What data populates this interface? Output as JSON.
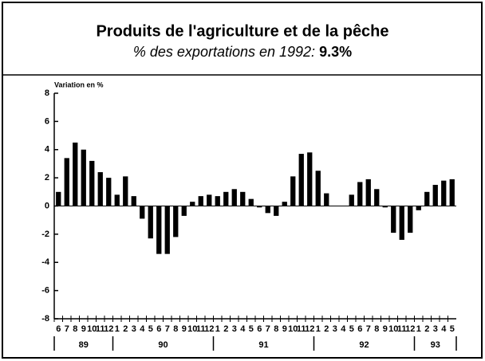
{
  "chart_data": {
    "type": "bar",
    "title": "Produits de l'agriculture et de la pêche",
    "subtitle": "% des exportations en 1992:",
    "subtitle_value": "9.3%",
    "y_label": "Variation en %",
    "categories": [
      "6",
      "7",
      "8",
      "9",
      "10",
      "11",
      "12",
      "1",
      "2",
      "3",
      "4",
      "5",
      "6",
      "7",
      "8",
      "9",
      "10",
      "11",
      "12",
      "1",
      "2",
      "3",
      "4",
      "5",
      "6",
      "7",
      "8",
      "9",
      "10",
      "11",
      "12",
      "1",
      "2",
      "3",
      "4",
      "5",
      "6",
      "7",
      "8",
      "9",
      "10",
      "11",
      "12",
      "1",
      "2",
      "3",
      "4",
      "5"
    ],
    "years": [
      "89",
      "90",
      "91",
      "92",
      "93"
    ],
    "values": [
      1.0,
      3.4,
      4.5,
      4.0,
      3.2,
      2.4,
      2.0,
      0.8,
      2.1,
      0.7,
      -0.9,
      -2.3,
      -3.4,
      -3.4,
      -2.2,
      -0.7,
      0.3,
      0.7,
      0.8,
      0.7,
      1.0,
      1.2,
      1.0,
      0.5,
      -0.1,
      -0.5,
      -0.7,
      0.3,
      2.1,
      3.7,
      3.8,
      2.5,
      0.9,
      0,
      0,
      0.8,
      1.7,
      1.9,
      1.2,
      -0.1,
      -1.9,
      -2.4,
      -1.9,
      -0.3,
      1.0,
      1.5,
      1.8,
      1.9
    ],
    "color": "#000000",
    "ylim": [
      -8,
      8
    ],
    "yticks": [
      -8,
      -6,
      -4,
      -2,
      0,
      2,
      4,
      6,
      8
    ]
  }
}
